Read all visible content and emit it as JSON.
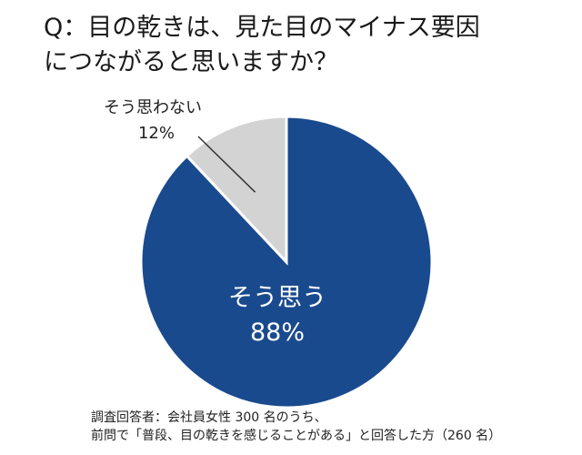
{
  "title_lines": [
    "Q：目の乾きは、見た目のマイナス要因",
    "につながると思いますか？"
  ],
  "chart_data": {
    "type": "pie",
    "categories": [
      "そう思う",
      "そう思わない"
    ],
    "values": [
      88,
      12
    ],
    "value_labels": [
      "88%",
      "12%"
    ],
    "colors": [
      "#1a4a8e",
      "#d3d3d3"
    ]
  },
  "footnote_lines": [
    "調査回答者：会社員女性 300 名のうち、",
    "前問で「普段、目の乾きを感じることがある」と回答した方（260 名）"
  ]
}
